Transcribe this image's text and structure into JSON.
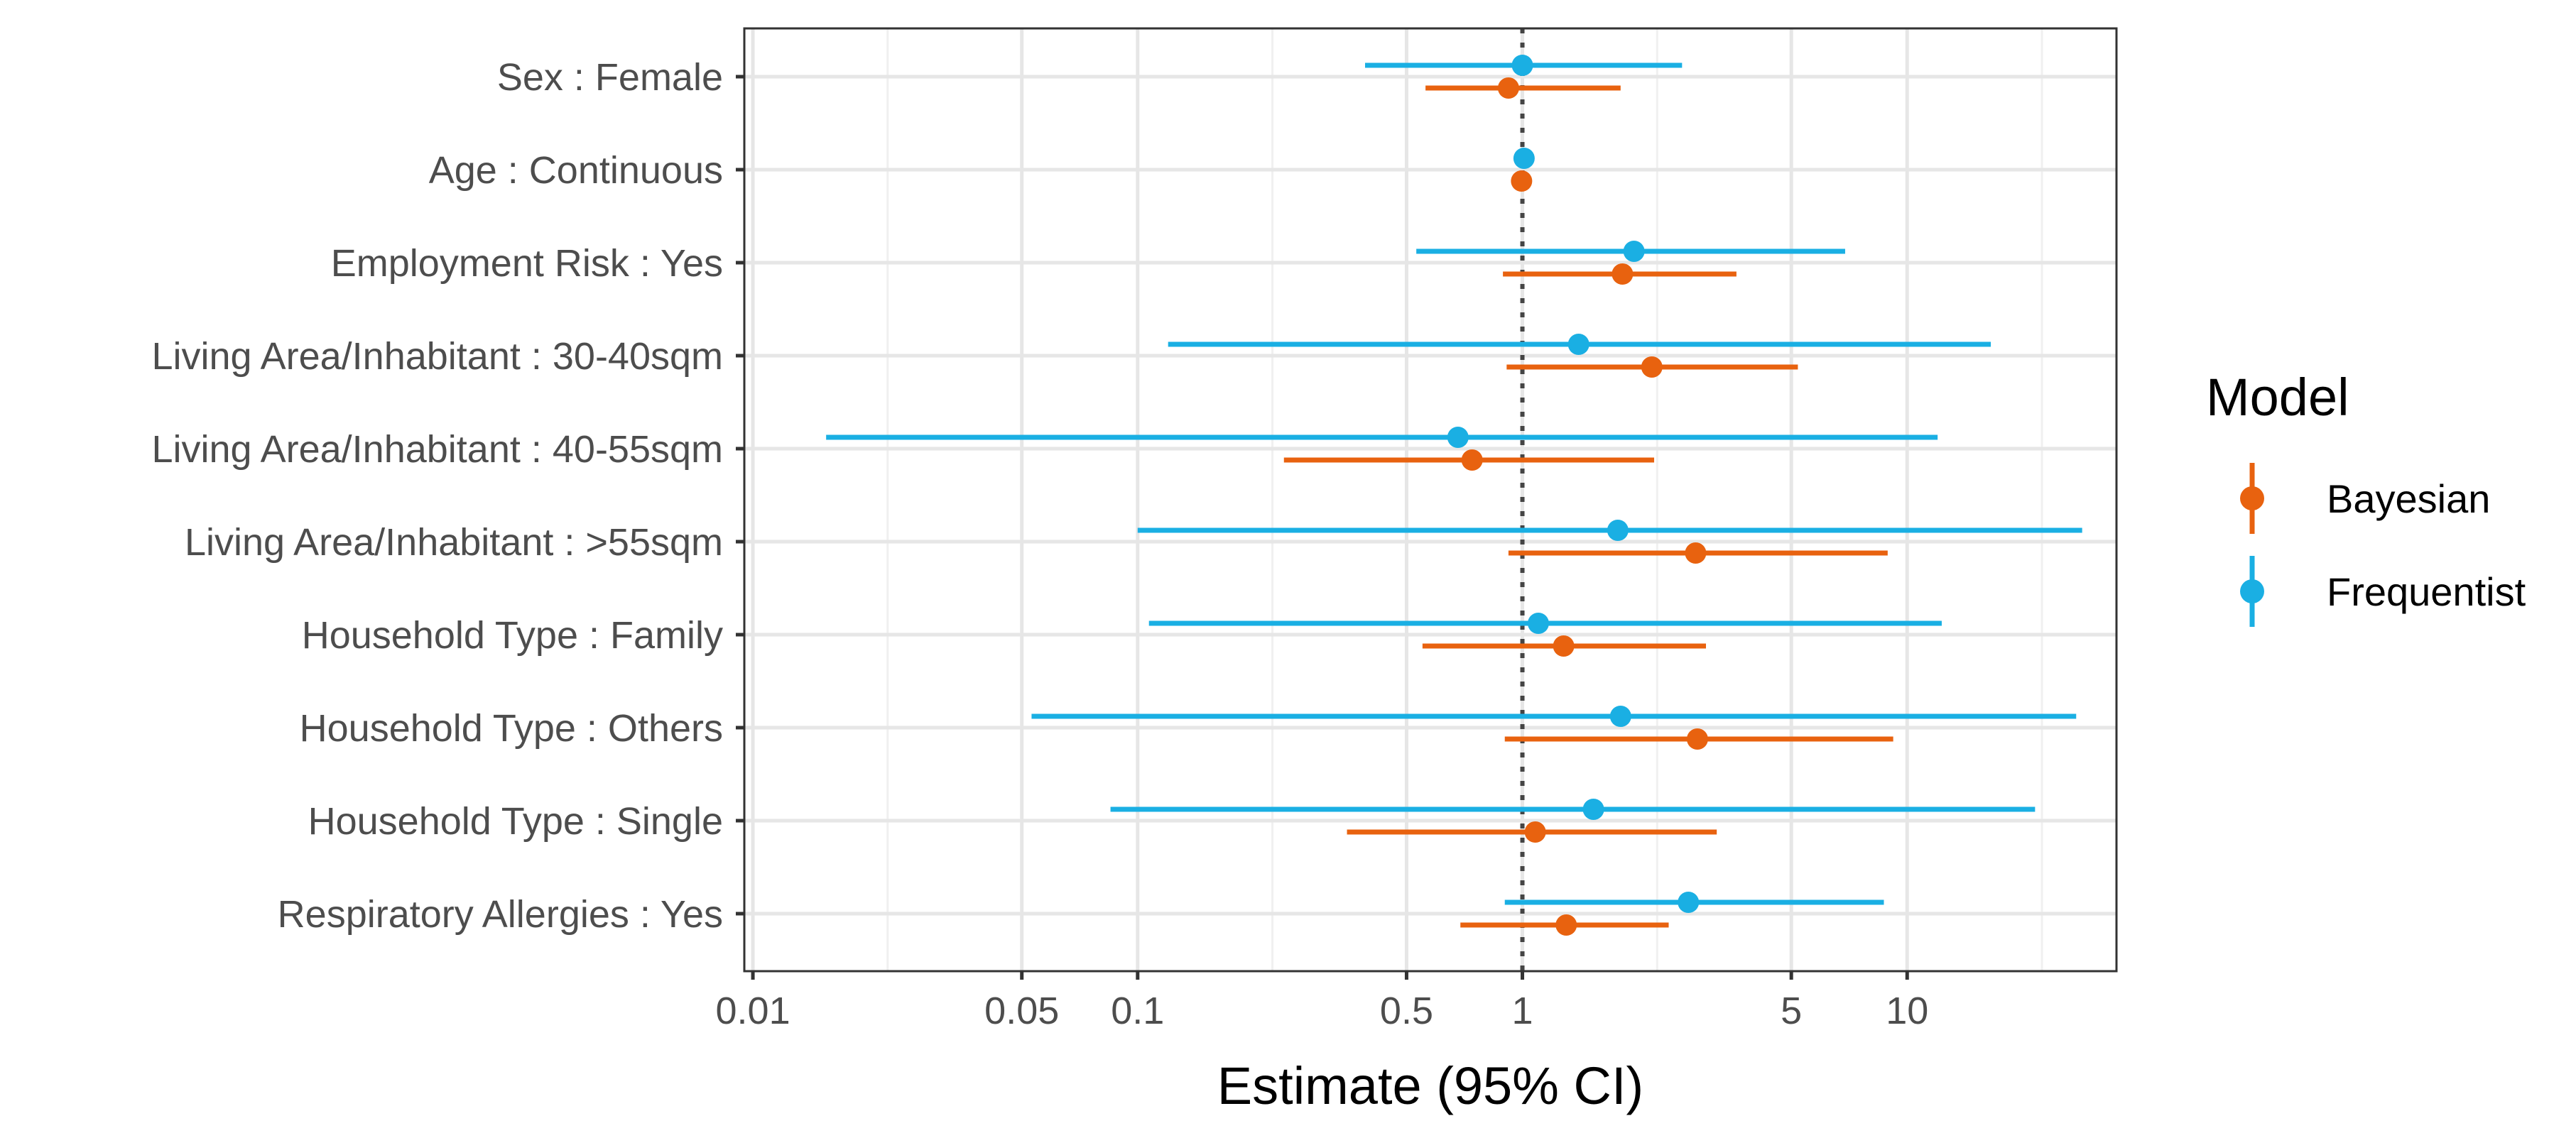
{
  "chart_data": {
    "type": "forest",
    "xlabel": "Estimate (95% CI)",
    "x_scale": "log10",
    "xlim": [
      0.0095,
      35
    ],
    "x_ticks": [
      0.01,
      0.05,
      0.1,
      0.5,
      1,
      5,
      10
    ],
    "x_tick_labels": [
      "0.01",
      "0.05",
      "0.1",
      "0.5",
      "1",
      "5",
      "10"
    ],
    "x_minor_gridlines": [
      0.0224,
      0.224,
      2.24,
      22.4
    ],
    "reference_line": 1,
    "categories": [
      "Sex : Female",
      "Age : Continuous",
      "Employment Risk : Yes",
      "Living Area/Inhabitant : 30-40sqm",
      "Living Area/Inhabitant : 40-55sqm",
      "Living Area/Inhabitant : >55sqm",
      "Household Type : Family",
      "Household Type : Others",
      "Household Type : Single",
      "Respiratory Allergies : Yes"
    ],
    "legend": {
      "title": "Model",
      "entries": [
        "Bayesian",
        "Frequentist"
      ],
      "position": "right"
    },
    "series": [
      {
        "name": "Frequentist",
        "color": "#1aafe3",
        "estimate": [
          1.0,
          1.01,
          1.95,
          1.4,
          0.68,
          1.77,
          1.1,
          1.8,
          1.53,
          2.7
        ],
        "lower": [
          0.39,
          1.0,
          0.53,
          0.12,
          0.0155,
          0.1,
          0.107,
          0.053,
          0.085,
          0.9
        ],
        "upper": [
          2.6,
          1.02,
          6.9,
          16.5,
          12.0,
          28.5,
          12.3,
          27.5,
          21.5,
          8.7
        ]
      },
      {
        "name": "Bayesian",
        "color": "#e8620f",
        "estimate": [
          0.92,
          0.995,
          1.82,
          2.17,
          0.74,
          2.82,
          1.28,
          2.85,
          1.08,
          1.3
        ],
        "lower": [
          0.56,
          0.99,
          0.89,
          0.91,
          0.24,
          0.92,
          0.55,
          0.9,
          0.35,
          0.69
        ],
        "upper": [
          1.8,
          1.0,
          3.6,
          5.2,
          2.2,
          8.9,
          3.0,
          9.2,
          3.2,
          2.4
        ]
      }
    ]
  }
}
